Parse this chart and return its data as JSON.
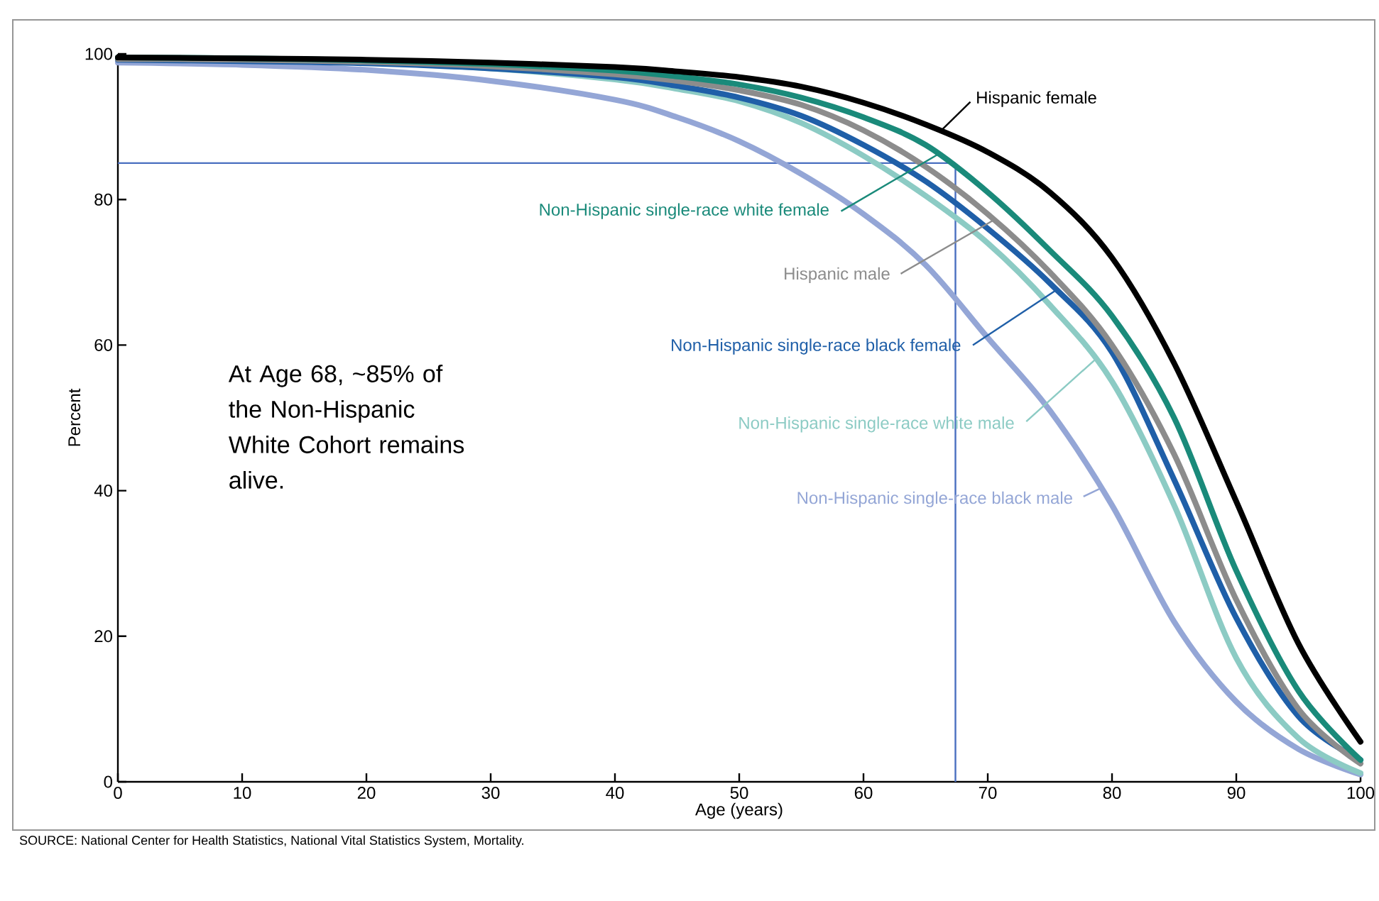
{
  "chart_data": {
    "type": "line",
    "xlabel": "Age (years)",
    "ylabel": "Percent",
    "xlim": [
      0,
      100
    ],
    "ylim": [
      0,
      100
    ],
    "xticks": [
      0,
      10,
      20,
      30,
      40,
      50,
      60,
      70,
      80,
      90,
      100
    ],
    "yticks": [
      0,
      20,
      40,
      60,
      80,
      100
    ],
    "grid": false,
    "marker": "none",
    "line_style": "solid",
    "series": [
      {
        "name": "Hispanic female",
        "color": "#000000",
        "x": [
          0,
          10,
          20,
          30,
          40,
          45,
          50,
          55,
          60,
          65,
          70,
          75,
          80,
          85,
          90,
          95,
          100
        ],
        "values": [
          99.5,
          99.4,
          99.2,
          98.8,
          98.2,
          97.6,
          96.8,
          95.5,
          93.3,
          90.3,
          86.5,
          81,
          72,
          57.5,
          38.5,
          19,
          5.5
        ]
      },
      {
        "name": "Non-Hispanic single-race white female",
        "color": "#1a8a7a",
        "x": [
          0,
          10,
          20,
          30,
          40,
          45,
          50,
          55,
          60,
          65,
          70,
          75,
          80,
          85,
          90,
          95,
          100
        ],
        "values": [
          99.5,
          99.4,
          99.1,
          98.6,
          97.7,
          96.9,
          95.8,
          94,
          91.3,
          87.5,
          81,
          73,
          64,
          50,
          29,
          12.5,
          3
        ]
      },
      {
        "name": "Hispanic male",
        "color": "#8c8c8c",
        "x": [
          0,
          10,
          20,
          30,
          40,
          45,
          50,
          55,
          60,
          65,
          70,
          75,
          80,
          85,
          90,
          95,
          100
        ],
        "values": [
          99.3,
          99.2,
          98.9,
          98.3,
          97.2,
          96.3,
          95,
          93,
          89.5,
          84.5,
          78,
          70,
          60,
          45,
          25,
          10,
          2.5
        ]
      },
      {
        "name": "Non-Hispanic single-race black female",
        "color": "#1f5fa8",
        "x": [
          0,
          10,
          20,
          30,
          40,
          45,
          50,
          55,
          60,
          65,
          70,
          75,
          80,
          85,
          90,
          95,
          100
        ],
        "values": [
          99.2,
          99,
          98.7,
          98,
          96.8,
          95.6,
          94,
          91.5,
          87.5,
          82.5,
          76,
          68.5,
          59,
          41.5,
          22.5,
          9,
          3
        ]
      },
      {
        "name": "Non-Hispanic single-race white male",
        "color": "#8ccbc4",
        "x": [
          0,
          10,
          20,
          30,
          40,
          45,
          50,
          55,
          60,
          65,
          70,
          75,
          80,
          85,
          90,
          95,
          100
        ],
        "values": [
          99.4,
          99.2,
          98.8,
          98,
          96.5,
          95.2,
          93.5,
          90.5,
          86,
          80.5,
          74,
          65.5,
          55,
          38,
          17,
          6,
          1.2
        ]
      },
      {
        "name": "Non-Hispanic single-race black male",
        "color": "#94a6d6",
        "x": [
          0,
          10,
          20,
          30,
          40,
          45,
          50,
          55,
          60,
          65,
          70,
          75,
          80,
          85,
          90,
          95,
          100
        ],
        "values": [
          98.8,
          98.5,
          97.8,
          96.3,
          93.7,
          91.3,
          88,
          83.5,
          78,
          71,
          61,
          51,
          38,
          22,
          11,
          4.5,
          1
        ]
      }
    ],
    "ref_lines": [
      {
        "axis": "y",
        "value": 85,
        "color": "#4a6fc0"
      },
      {
        "axis": "x",
        "value": 67.4,
        "color": "#4a6fc0"
      }
    ],
    "annotations": [
      "At Age 68, ~85% of the Non-Hispanic White Cohort remains alive.",
      "SOURCE: National Center for Health Statistics, National Vital Statistics System, Mortality."
    ]
  }
}
